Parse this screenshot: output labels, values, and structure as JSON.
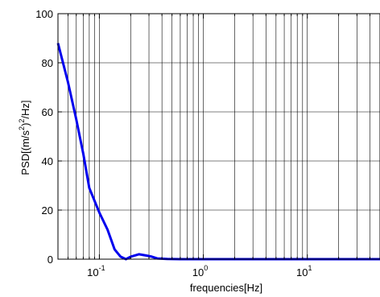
{
  "chart_data": {
    "type": "line",
    "xlabel": "frequencies[Hz]",
    "ylabel": "PSD[(m/s",
    "ylabel_sup1": "2",
    "ylabel_mid": ")",
    "ylabel_sup2": "2",
    "ylabel_end": "/Hz]",
    "x_scale": "log",
    "xlim": [
      0.04,
      50
    ],
    "ylim": [
      0,
      100
    ],
    "grid": true,
    "yticks": [
      0,
      20,
      40,
      60,
      80,
      100
    ],
    "yticklabels": [
      "0",
      "20",
      "40",
      "60",
      "80",
      "100"
    ],
    "xticks": [
      0.1,
      1,
      10
    ],
    "xticklabels": [
      {
        "base": "10",
        "exp": "-1"
      },
      {
        "base": "10",
        "exp": "0"
      },
      {
        "base": "10",
        "exp": "1"
      }
    ],
    "series": [
      {
        "color": "#0000ee",
        "x": [
          0.04,
          0.05,
          0.06,
          0.07,
          0.08,
          0.1,
          0.12,
          0.14,
          0.16,
          0.18,
          0.2,
          0.24,
          0.28,
          0.32,
          0.36,
          0.45,
          0.6,
          1,
          5,
          10,
          50
        ],
        "y": [
          88,
          72,
          57,
          43,
          29,
          19,
          12,
          4,
          1,
          0,
          1,
          2,
          1.5,
          1,
          0.3,
          0.1,
          0,
          0,
          0,
          0,
          0
        ]
      }
    ]
  }
}
